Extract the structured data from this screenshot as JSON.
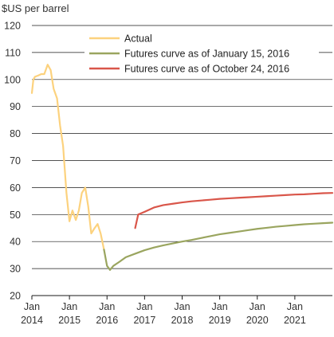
{
  "chart_data": {
    "type": "line",
    "ylabel": "$US per barrel",
    "ylim": [
      20,
      120
    ],
    "yticks": [
      20,
      30,
      40,
      50,
      60,
      70,
      80,
      90,
      100,
      110,
      120
    ],
    "xlim": [
      2014.0,
      2022.0
    ],
    "xticks": [
      {
        "x": 2014,
        "line1": "Jan",
        "line2": "2014"
      },
      {
        "x": 2015,
        "line1": "Jan",
        "line2": "2015"
      },
      {
        "x": 2016,
        "line1": "Jan",
        "line2": "2016"
      },
      {
        "x": 2017,
        "line1": "Jan",
        "line2": "2017"
      },
      {
        "x": 2018,
        "line1": "Jan",
        "line2": "2018"
      },
      {
        "x": 2019,
        "line1": "Jan",
        "line2": "2019"
      },
      {
        "x": 2020,
        "line1": "Jan",
        "line2": "2020"
      },
      {
        "x": 2021,
        "line1": "Jan",
        "line2": "2021"
      }
    ],
    "grid": "horizontal",
    "legend_position": "top-center",
    "series": [
      {
        "name": "Actual",
        "color": "#fcd27e",
        "points": [
          [
            2014.0,
            95
          ],
          [
            2014.04,
            100
          ],
          [
            2014.08,
            101
          ],
          [
            2014.17,
            101.5
          ],
          [
            2014.25,
            102
          ],
          [
            2014.33,
            102
          ],
          [
            2014.42,
            105.5
          ],
          [
            2014.5,
            103.5
          ],
          [
            2014.58,
            96.5
          ],
          [
            2014.67,
            93
          ],
          [
            2014.75,
            83
          ],
          [
            2014.83,
            75.5
          ],
          [
            2014.92,
            58
          ],
          [
            2015.0,
            47.5
          ],
          [
            2015.08,
            51.5
          ],
          [
            2015.17,
            48
          ],
          [
            2015.25,
            51.5
          ],
          [
            2015.33,
            58
          ],
          [
            2015.42,
            60
          ],
          [
            2015.5,
            53
          ],
          [
            2015.58,
            43
          ],
          [
            2015.67,
            45
          ],
          [
            2015.75,
            46.5
          ],
          [
            2015.83,
            43
          ],
          [
            2015.92,
            37
          ]
        ]
      },
      {
        "name": "Futures curve as of January 15, 2016",
        "color": "#9aa55f",
        "points": [
          [
            2015.92,
            37
          ],
          [
            2016.0,
            31
          ],
          [
            2016.08,
            29.5
          ],
          [
            2016.17,
            31
          ],
          [
            2016.33,
            32.5
          ],
          [
            2016.5,
            34.2
          ],
          [
            2016.75,
            35.5
          ],
          [
            2017.0,
            36.8
          ],
          [
            2017.25,
            37.8
          ],
          [
            2017.5,
            38.6
          ],
          [
            2017.75,
            39.3
          ],
          [
            2018.0,
            40.0
          ],
          [
            2018.25,
            40.6
          ],
          [
            2018.5,
            41.3
          ],
          [
            2018.75,
            42.0
          ],
          [
            2019.0,
            42.7
          ],
          [
            2019.25,
            43.2
          ],
          [
            2019.5,
            43.7
          ],
          [
            2019.75,
            44.2
          ],
          [
            2020.0,
            44.7
          ],
          [
            2020.25,
            45.1
          ],
          [
            2020.5,
            45.5
          ],
          [
            2020.75,
            45.8
          ],
          [
            2021.0,
            46.1
          ],
          [
            2021.25,
            46.4
          ],
          [
            2021.5,
            46.6
          ],
          [
            2021.75,
            46.8
          ],
          [
            2022.0,
            47.0
          ]
        ]
      },
      {
        "name": "Futures curve as of October 24, 2016",
        "color": "#d9564a",
        "points": [
          [
            2016.75,
            45
          ],
          [
            2016.83,
            50
          ],
          [
            2017.0,
            51
          ],
          [
            2017.25,
            52.6
          ],
          [
            2017.5,
            53.5
          ],
          [
            2017.75,
            54.0
          ],
          [
            2018.0,
            54.5
          ],
          [
            2018.25,
            54.9
          ],
          [
            2018.5,
            55.2
          ],
          [
            2018.75,
            55.5
          ],
          [
            2019.0,
            55.8
          ],
          [
            2019.25,
            56.0
          ],
          [
            2019.5,
            56.2
          ],
          [
            2019.75,
            56.4
          ],
          [
            2020.0,
            56.6
          ],
          [
            2020.25,
            56.8
          ],
          [
            2020.5,
            57.0
          ],
          [
            2020.75,
            57.2
          ],
          [
            2021.0,
            57.4
          ],
          [
            2021.25,
            57.5
          ],
          [
            2021.5,
            57.7
          ],
          [
            2021.75,
            57.9
          ],
          [
            2022.0,
            58.0
          ]
        ]
      }
    ]
  }
}
